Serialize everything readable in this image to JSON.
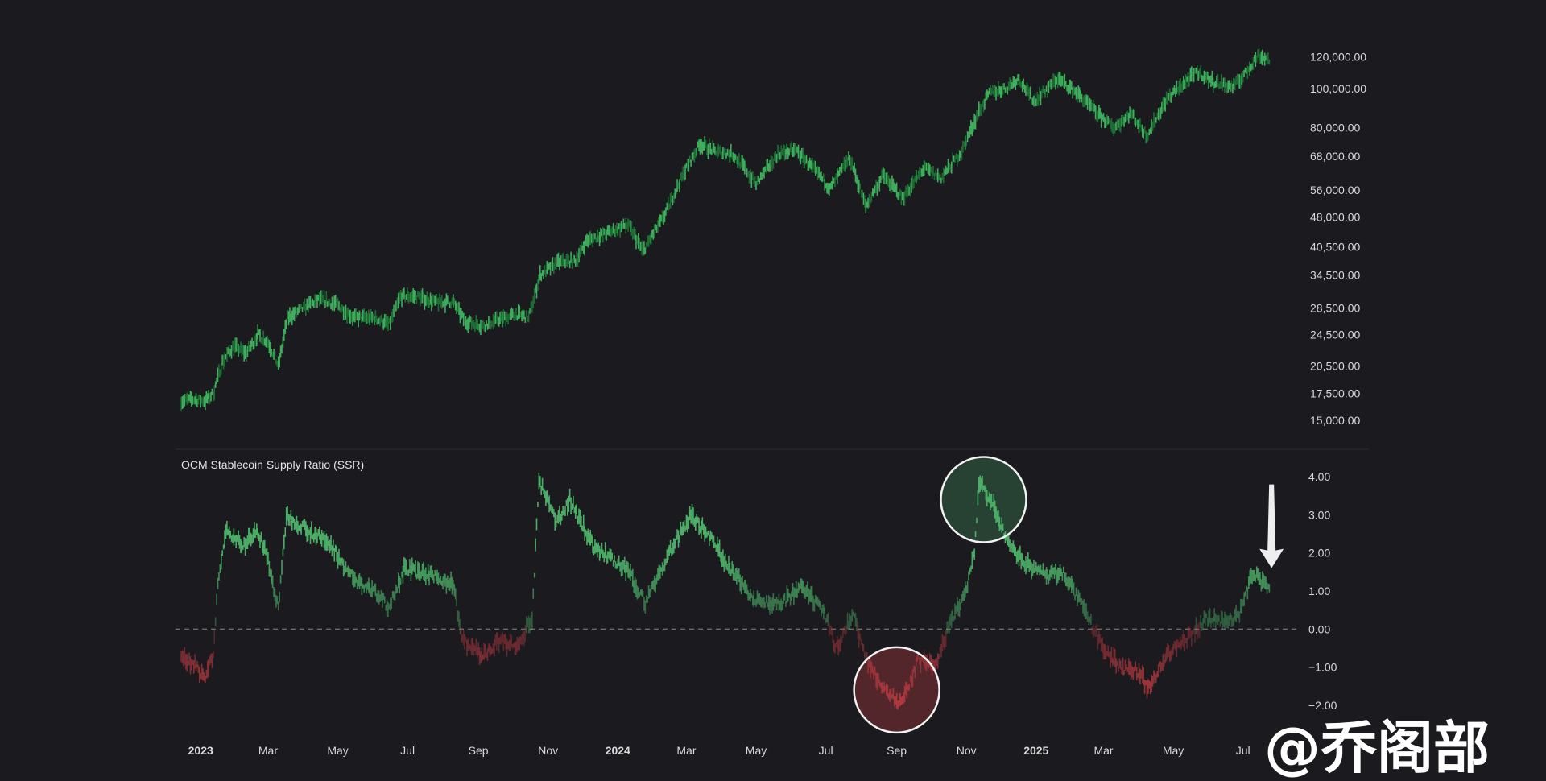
{
  "watermark": "@乔阁部",
  "chart_data": [
    {
      "type": "candlestick",
      "title": "",
      "y_scale": "log",
      "ylim": [
        13500,
        135000
      ],
      "y_ticks": [
        {
          "value": 120000,
          "label": "120,000.00"
        },
        {
          "value": 100000,
          "label": "100,000.00"
        },
        {
          "value": 80000,
          "label": "80,000.00"
        },
        {
          "value": 68000,
          "label": "68,000.00"
        },
        {
          "value": 56000,
          "label": "56,000.00"
        },
        {
          "value": 48000,
          "label": "48,000.00"
        },
        {
          "value": 40500,
          "label": "40,500.00"
        },
        {
          "value": 34500,
          "label": "34,500.00"
        },
        {
          "value": 28500,
          "label": "28,500.00"
        },
        {
          "value": 24500,
          "label": "24,500.00"
        },
        {
          "value": 20500,
          "label": "20,500.00"
        },
        {
          "value": 17500,
          "label": "17,500.00"
        },
        {
          "value": 15000,
          "label": "15,000.00"
        }
      ],
      "color": "#3fae5d",
      "series": [
        {
          "x": "2022-12-15",
          "y": 16800
        },
        {
          "x": "2022-12-25",
          "y": 16900
        },
        {
          "x": "2023-01-05",
          "y": 16800
        },
        {
          "x": "2023-01-12",
          "y": 17500
        },
        {
          "x": "2023-01-20",
          "y": 21000
        },
        {
          "x": "2023-01-30",
          "y": 23000
        },
        {
          "x": "2023-02-10",
          "y": 22000
        },
        {
          "x": "2023-02-20",
          "y": 24500
        },
        {
          "x": "2023-03-01",
          "y": 23500
        },
        {
          "x": "2023-03-10",
          "y": 20500
        },
        {
          "x": "2023-03-18",
          "y": 27000
        },
        {
          "x": "2023-04-01",
          "y": 28500
        },
        {
          "x": "2023-04-15",
          "y": 30000
        },
        {
          "x": "2023-05-01",
          "y": 29000
        },
        {
          "x": "2023-05-15",
          "y": 27000
        },
        {
          "x": "2023-06-01",
          "y": 27000
        },
        {
          "x": "2023-06-15",
          "y": 26000
        },
        {
          "x": "2023-06-25",
          "y": 30500
        },
        {
          "x": "2023-07-10",
          "y": 30500
        },
        {
          "x": "2023-07-25",
          "y": 29500
        },
        {
          "x": "2023-08-10",
          "y": 29500
        },
        {
          "x": "2023-08-20",
          "y": 26500
        },
        {
          "x": "2023-09-05",
          "y": 25800
        },
        {
          "x": "2023-09-20",
          "y": 26800
        },
        {
          "x": "2023-10-05",
          "y": 27500
        },
        {
          "x": "2023-10-15",
          "y": 27000
        },
        {
          "x": "2023-10-25",
          "y": 34500
        },
        {
          "x": "2023-11-10",
          "y": 37000
        },
        {
          "x": "2023-11-25",
          "y": 37500
        },
        {
          "x": "2023-12-05",
          "y": 42000
        },
        {
          "x": "2023-12-20",
          "y": 43500
        },
        {
          "x": "2024-01-10",
          "y": 46000
        },
        {
          "x": "2024-01-23",
          "y": 39500
        },
        {
          "x": "2024-02-10",
          "y": 48000
        },
        {
          "x": "2024-02-28",
          "y": 62000
        },
        {
          "x": "2024-03-13",
          "y": 73000
        },
        {
          "x": "2024-03-25",
          "y": 70000
        },
        {
          "x": "2024-04-10",
          "y": 69000
        },
        {
          "x": "2024-04-20",
          "y": 64000
        },
        {
          "x": "2024-05-01",
          "y": 58000
        },
        {
          "x": "2024-05-20",
          "y": 69000
        },
        {
          "x": "2024-06-05",
          "y": 70500
        },
        {
          "x": "2024-06-25",
          "y": 61000
        },
        {
          "x": "2024-07-05",
          "y": 56500
        },
        {
          "x": "2024-07-22",
          "y": 67500
        },
        {
          "x": "2024-08-05",
          "y": 51000
        },
        {
          "x": "2024-08-20",
          "y": 61000
        },
        {
          "x": "2024-09-06",
          "y": 53500
        },
        {
          "x": "2024-09-25",
          "y": 63500
        },
        {
          "x": "2024-10-10",
          "y": 60000
        },
        {
          "x": "2024-10-28",
          "y": 70000
        },
        {
          "x": "2024-11-12",
          "y": 88000
        },
        {
          "x": "2024-11-22",
          "y": 98000
        },
        {
          "x": "2024-12-05",
          "y": 100000
        },
        {
          "x": "2024-12-17",
          "y": 106000
        },
        {
          "x": "2024-12-30",
          "y": 93000
        },
        {
          "x": "2025-01-20",
          "y": 106000
        },
        {
          "x": "2025-02-05",
          "y": 98000
        },
        {
          "x": "2025-02-25",
          "y": 86000
        },
        {
          "x": "2025-03-10",
          "y": 80000
        },
        {
          "x": "2025-03-25",
          "y": 87000
        },
        {
          "x": "2025-04-08",
          "y": 76500
        },
        {
          "x": "2025-04-25",
          "y": 94000
        },
        {
          "x": "2025-05-10",
          "y": 103000
        },
        {
          "x": "2025-05-22",
          "y": 110000
        },
        {
          "x": "2025-06-05",
          "y": 104000
        },
        {
          "x": "2025-06-22",
          "y": 101000
        },
        {
          "x": "2025-07-03",
          "y": 109000
        },
        {
          "x": "2025-07-14",
          "y": 121000
        },
        {
          "x": "2025-07-25",
          "y": 118000
        }
      ]
    },
    {
      "type": "line",
      "title": "OCM Stablecoin Supply Ratio (SSR)",
      "ylim": [
        -2.3,
        4.3
      ],
      "y_ticks": [
        {
          "value": 4,
          "label": "4.00"
        },
        {
          "value": 3,
          "label": "3.00"
        },
        {
          "value": 2,
          "label": "2.00"
        },
        {
          "value": 1,
          "label": "1.00"
        },
        {
          "value": 0,
          "label": "0.00"
        },
        {
          "value": -1,
          "label": "−1.00"
        },
        {
          "value": -2,
          "label": "−2.00"
        }
      ],
      "baseline": 0,
      "positive_color": "#4cae67",
      "negative_color": "#b0393e",
      "series": [
        {
          "x": "2022-12-15",
          "y": -0.8
        },
        {
          "x": "2022-12-28",
          "y": -0.9
        },
        {
          "x": "2023-01-05",
          "y": -1.4
        },
        {
          "x": "2023-01-12",
          "y": -0.6
        },
        {
          "x": "2023-01-17",
          "y": 1.5
        },
        {
          "x": "2023-01-24",
          "y": 2.6
        },
        {
          "x": "2023-02-08",
          "y": 2.2
        },
        {
          "x": "2023-02-20",
          "y": 2.6
        },
        {
          "x": "2023-03-01",
          "y": 1.8
        },
        {
          "x": "2023-03-10",
          "y": 0.5
        },
        {
          "x": "2023-03-17",
          "y": 3.0
        },
        {
          "x": "2023-04-05",
          "y": 2.6
        },
        {
          "x": "2023-04-25",
          "y": 2.2
        },
        {
          "x": "2023-05-15",
          "y": 1.3
        },
        {
          "x": "2023-06-01",
          "y": 1.0
        },
        {
          "x": "2023-06-15",
          "y": 0.6
        },
        {
          "x": "2023-06-28",
          "y": 1.6
        },
        {
          "x": "2023-07-20",
          "y": 1.4
        },
        {
          "x": "2023-08-10",
          "y": 1.2
        },
        {
          "x": "2023-08-18",
          "y": -0.3
        },
        {
          "x": "2023-09-05",
          "y": -0.7
        },
        {
          "x": "2023-09-20",
          "y": -0.3
        },
        {
          "x": "2023-10-05",
          "y": -0.5
        },
        {
          "x": "2023-10-18",
          "y": 0.3
        },
        {
          "x": "2023-10-24",
          "y": 3.9
        },
        {
          "x": "2023-11-08",
          "y": 2.8
        },
        {
          "x": "2023-11-20",
          "y": 3.4
        },
        {
          "x": "2023-12-10",
          "y": 2.2
        },
        {
          "x": "2023-12-28",
          "y": 1.8
        },
        {
          "x": "2024-01-10",
          "y": 1.5
        },
        {
          "x": "2024-01-25",
          "y": 0.7
        },
        {
          "x": "2024-02-15",
          "y": 2.0
        },
        {
          "x": "2024-03-05",
          "y": 3.0
        },
        {
          "x": "2024-03-20",
          "y": 2.5
        },
        {
          "x": "2024-04-10",
          "y": 1.5
        },
        {
          "x": "2024-04-30",
          "y": 0.8
        },
        {
          "x": "2024-05-20",
          "y": 0.6
        },
        {
          "x": "2024-06-10",
          "y": 1.1
        },
        {
          "x": "2024-06-30",
          "y": 0.4
        },
        {
          "x": "2024-07-10",
          "y": -0.5
        },
        {
          "x": "2024-07-25",
          "y": 0.4
        },
        {
          "x": "2024-08-05",
          "y": -0.8
        },
        {
          "x": "2024-08-20",
          "y": -1.5
        },
        {
          "x": "2024-09-05",
          "y": -2.0
        },
        {
          "x": "2024-09-20",
          "y": -0.8
        },
        {
          "x": "2024-10-05",
          "y": -1.0
        },
        {
          "x": "2024-10-18",
          "y": 0.2
        },
        {
          "x": "2024-11-01",
          "y": 1.0
        },
        {
          "x": "2024-11-08",
          "y": 2.0
        },
        {
          "x": "2024-11-12",
          "y": 3.9
        },
        {
          "x": "2024-11-25",
          "y": 3.2
        },
        {
          "x": "2024-12-05",
          "y": 2.4
        },
        {
          "x": "2024-12-20",
          "y": 1.8
        },
        {
          "x": "2025-01-10",
          "y": 1.4
        },
        {
          "x": "2025-01-25",
          "y": 1.5
        },
        {
          "x": "2025-02-10",
          "y": 0.6
        },
        {
          "x": "2025-03-01",
          "y": -0.5
        },
        {
          "x": "2025-03-15",
          "y": -1.0
        },
        {
          "x": "2025-04-01",
          "y": -1.1
        },
        {
          "x": "2025-04-09",
          "y": -1.6
        },
        {
          "x": "2025-04-25",
          "y": -0.7
        },
        {
          "x": "2025-05-15",
          "y": -0.2
        },
        {
          "x": "2025-05-30",
          "y": 0.3
        },
        {
          "x": "2025-06-15",
          "y": 0.2
        },
        {
          "x": "2025-06-28",
          "y": 0.4
        },
        {
          "x": "2025-07-10",
          "y": 1.5
        },
        {
          "x": "2025-07-25",
          "y": 1.0
        }
      ],
      "annotations": [
        {
          "type": "circle",
          "x": "2024-11-16",
          "y": 3.4,
          "color": "green"
        },
        {
          "type": "circle",
          "x": "2024-09-01",
          "y": -1.6,
          "color": "red"
        },
        {
          "type": "arrow-down",
          "x": "2025-07-26",
          "y_from": 3.8,
          "y_to": 1.6,
          "color": "white"
        }
      ]
    }
  ],
  "x_axis": {
    "ticks": [
      {
        "x": "2023-01-01",
        "label": "2023",
        "bold": true
      },
      {
        "x": "2023-03-01",
        "label": "Mar",
        "bold": false
      },
      {
        "x": "2023-05-01",
        "label": "May",
        "bold": false
      },
      {
        "x": "2023-07-01",
        "label": "Jul",
        "bold": false
      },
      {
        "x": "2023-09-01",
        "label": "Sep",
        "bold": false
      },
      {
        "x": "2023-11-01",
        "label": "Nov",
        "bold": false
      },
      {
        "x": "2024-01-01",
        "label": "2024",
        "bold": true
      },
      {
        "x": "2024-03-01",
        "label": "Mar",
        "bold": false
      },
      {
        "x": "2024-05-01",
        "label": "May",
        "bold": false
      },
      {
        "x": "2024-07-01",
        "label": "Jul",
        "bold": false
      },
      {
        "x": "2024-09-01",
        "label": "Sep",
        "bold": false
      },
      {
        "x": "2024-11-01",
        "label": "Nov",
        "bold": false
      },
      {
        "x": "2025-01-01",
        "label": "2025",
        "bold": true
      },
      {
        "x": "2025-03-01",
        "label": "Mar",
        "bold": false
      },
      {
        "x": "2025-05-01",
        "label": "May",
        "bold": false
      },
      {
        "x": "2025-07-01",
        "label": "Jul",
        "bold": false
      }
    ]
  }
}
